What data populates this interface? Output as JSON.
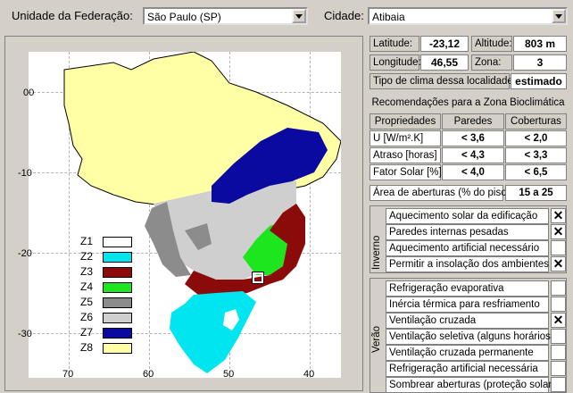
{
  "header": {
    "uf_label": "Unidade da Federação:",
    "uf_value": "São Paulo (SP)",
    "city_label": "Cidade:",
    "city_value": "Atibaia"
  },
  "location": {
    "lat_label": "Latitude:",
    "lat_value": "-23,12",
    "alt_label": "Altitude:",
    "alt_value": "803 m",
    "lon_label": "Longitude:",
    "lon_value": "46,55",
    "zone_label": "Zona:",
    "zone_value": "3",
    "climate_label": "Tipo de clima dessa localidade",
    "climate_value": "estimado"
  },
  "recommendations": {
    "title": "Recomendações para a Zona Bioclimática",
    "columns": [
      "Propriedades",
      "Paredes",
      "Coberturas"
    ],
    "rows": [
      {
        "prop": "U [W/m².K]",
        "walls": "< 3,6",
        "roofs": "< 2,0"
      },
      {
        "prop": "Atraso [horas]",
        "walls": "< 4,3",
        "roofs": "< 3,3"
      },
      {
        "prop": "Fator Solar [%]",
        "walls": "< 4,0",
        "roofs": "< 6,5"
      }
    ],
    "openings_label": "Área de aberturas (% do piso)",
    "openings_value": "15 a 25"
  },
  "winter": {
    "label": "Inverno",
    "items": [
      {
        "text": "Aquecimento solar da edificação",
        "mark": "✕"
      },
      {
        "text": "Paredes internas pesadas",
        "mark": "✕"
      },
      {
        "text": "Aquecimento artificial necessário",
        "mark": ""
      },
      {
        "text": "Permitir a insolação dos ambientes",
        "mark": "✕"
      }
    ]
  },
  "summer": {
    "label": "Verão",
    "items": [
      {
        "text": "Refrigeração evaporativa",
        "mark": ""
      },
      {
        "text": "Inércia térmica para resfriamento",
        "mark": ""
      },
      {
        "text": "Ventilação cruzada",
        "mark": "✕"
      },
      {
        "text": "Ventilação seletiva (alguns horários)",
        "mark": ""
      },
      {
        "text": "Ventilação cruzada permanente",
        "mark": ""
      },
      {
        "text": "Refrigeração artificial necessária",
        "mark": ""
      },
      {
        "text": "Sombrear aberturas (proteção solar)",
        "mark": ""
      }
    ]
  },
  "map": {
    "lat_ticks": [
      "00",
      "-10",
      "-20",
      "-30"
    ],
    "lon_ticks": [
      "70",
      "60",
      "50",
      "40"
    ],
    "legend": [
      {
        "code": "Z1",
        "color": "#ffffff"
      },
      {
        "code": "Z2",
        "color": "#00e5f0"
      },
      {
        "code": "Z3",
        "color": "#8b0a0a"
      },
      {
        "code": "Z4",
        "color": "#1ee61e"
      },
      {
        "code": "Z5",
        "color": "#8c8c8c"
      },
      {
        "code": "Z6",
        "color": "#cfcfcf"
      },
      {
        "code": "Z7",
        "color": "#0a0aa0"
      },
      {
        "code": "Z8",
        "color": "#ffffa6"
      }
    ]
  }
}
